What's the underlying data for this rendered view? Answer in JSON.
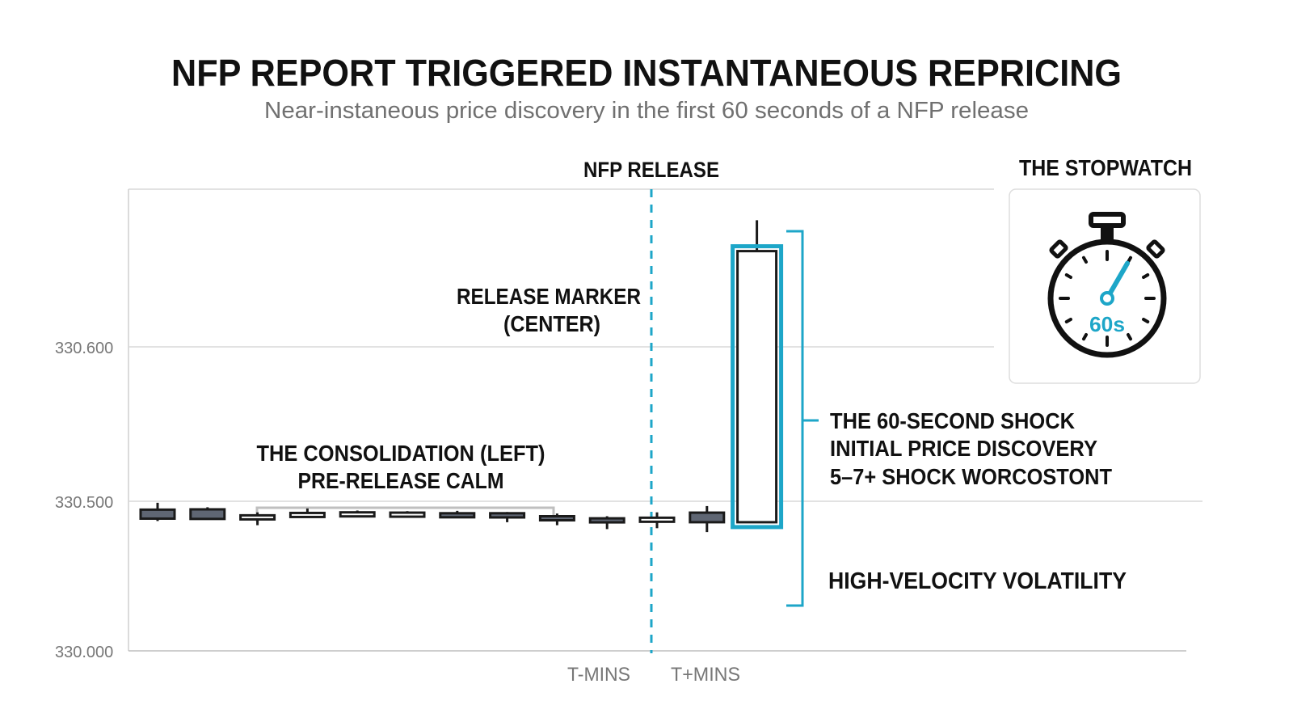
{
  "title": "NFP REPORT TRIGGERED INSTANTANEOUS REPRICING",
  "subtitle": "Near-instaneous price discovery in the first 60 seconds of a NFP release",
  "colors": {
    "accent": "#1da6c8",
    "bearish": "#5f6673",
    "bullish": "#ffffff",
    "outline": "#1a1a1a",
    "grid": "#d9d9d9",
    "muted_text": "#777777"
  },
  "annotations": {
    "release_label": "NFP RELEASE",
    "release_marker": [
      "RELEASE MARKER",
      "(CENTER)"
    ],
    "consolidation": [
      "THE CONSOLIDATION (LEFT)",
      "PRE-RELEASE CALM"
    ],
    "shock": [
      "THE 60-SECOND SHOCK",
      "INITIAL PRICE DISCOVERY",
      "5–7+ SHOCK WORCOSTONT"
    ],
    "volatility": "HIGH-VELOCITY VOLATILITY"
  },
  "stopwatch": {
    "title": "THE STOPWATCH",
    "readout": "60s",
    "icon": "stopwatch-icon",
    "hand_seconds": 5
  },
  "chart_data": {
    "type": "candlestick",
    "y_ticks": [
      {
        "value": 330.6,
        "label": "330.600"
      },
      {
        "value": 330.5,
        "label": "330.500"
      },
      {
        "value": 330.0,
        "label": "330.000"
      }
    ],
    "x_labels": [
      "T-MINS",
      "T+MINS"
    ],
    "release_index": 10.3,
    "candles": [
      {
        "o": 330.472,
        "h": 330.495,
        "l": 330.434,
        "c": 330.442
      },
      {
        "o": 330.473,
        "h": 330.48,
        "l": 330.438,
        "c": 330.441
      },
      {
        "o": 330.443,
        "h": 330.463,
        "l": 330.42,
        "c": 330.453
      },
      {
        "o": 330.453,
        "h": 330.476,
        "l": 330.445,
        "c": 330.461
      },
      {
        "o": 330.459,
        "h": 330.469,
        "l": 330.453,
        "c": 330.463
      },
      {
        "o": 330.457,
        "h": 330.467,
        "l": 330.45,
        "c": 330.462
      },
      {
        "o": 330.46,
        "h": 330.468,
        "l": 330.451,
        "c": 330.456
      },
      {
        "o": 330.46,
        "h": 330.464,
        "l": 330.43,
        "c": 330.446
      },
      {
        "o": 330.45,
        "h": 330.459,
        "l": 330.42,
        "c": 330.437
      },
      {
        "o": 330.443,
        "h": 330.45,
        "l": 330.407,
        "c": 330.43
      },
      {
        "o": 330.432,
        "h": 330.463,
        "l": 330.41,
        "c": 330.445
      },
      {
        "o": 330.462,
        "h": 330.484,
        "l": 330.397,
        "c": 330.43
      },
      {
        "o": 330.43,
        "h": 330.682,
        "l": 330.43,
        "c": 330.662
      }
    ]
  }
}
